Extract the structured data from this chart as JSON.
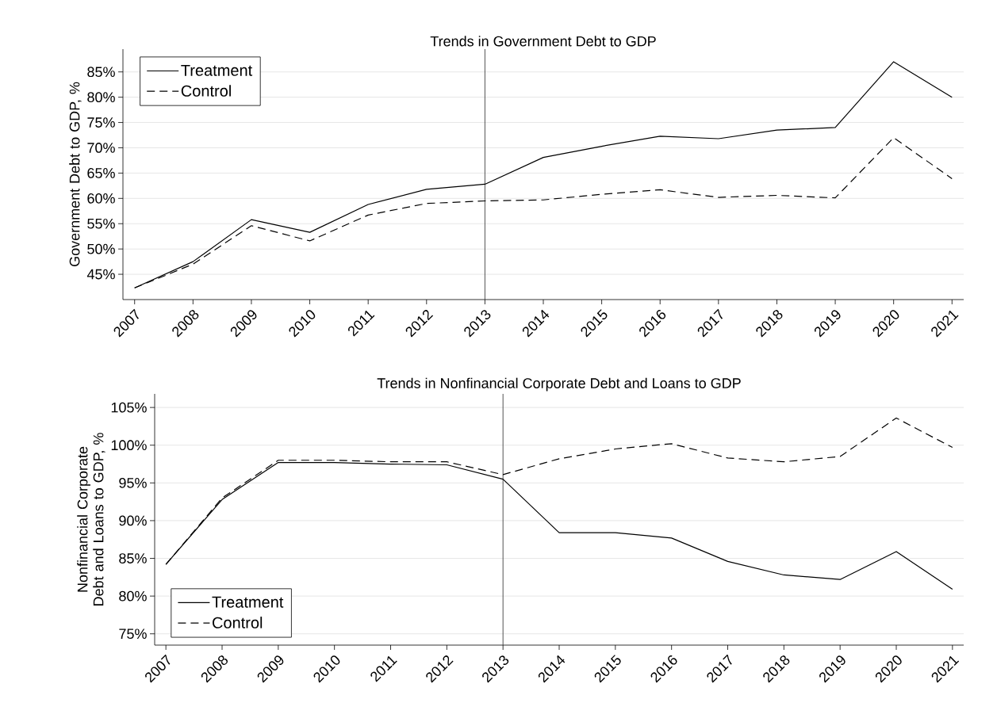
{
  "chart_data": [
    {
      "type": "line",
      "title": "Trends in Government Debt to GDP",
      "ylabel": "Government Debt to GDP, %",
      "x": [
        2007,
        2008,
        2009,
        2010,
        2011,
        2012,
        2013,
        2014,
        2015,
        2016,
        2017,
        2018,
        2019,
        2020,
        2021
      ],
      "series": [
        {
          "name": "Treatment",
          "color": "#000000",
          "line_style": "solid",
          "values": [
            42.3,
            47.5,
            55.8,
            53.3,
            58.8,
            61.8,
            62.8,
            68.1,
            70.3,
            72.3,
            71.8,
            73.5,
            74.0,
            87.0,
            80.0
          ]
        },
        {
          "name": "Control",
          "color": "#000000",
          "line_style": "dashed",
          "values": [
            42.3,
            47.0,
            54.6,
            51.6,
            56.7,
            59.0,
            59.5,
            59.7,
            60.8,
            61.7,
            60.2,
            60.6,
            60.1,
            72.0,
            63.9
          ]
        }
      ],
      "xlim": [
        2006.8,
        2021.2
      ],
      "ylim": [
        40,
        89.5
      ],
      "xticks": [
        2007,
        2008,
        2009,
        2010,
        2011,
        2012,
        2013,
        2014,
        2015,
        2016,
        2017,
        2018,
        2019,
        2020,
        2021
      ],
      "yticks": [
        {
          "value": 45,
          "label": "45%"
        },
        {
          "value": 50,
          "label": "50%"
        },
        {
          "value": 55,
          "label": "55%"
        },
        {
          "value": 60,
          "label": "60%"
        },
        {
          "value": 65,
          "label": "65%"
        },
        {
          "value": 70,
          "label": "70%"
        },
        {
          "value": 75,
          "label": "75%"
        },
        {
          "value": 80,
          "label": "80%"
        },
        {
          "value": 85,
          "label": "85%"
        }
      ],
      "ref_lines": [
        {
          "axis": "x",
          "value": 2013,
          "color": "#404040"
        }
      ],
      "grid": "y",
      "legend": "top left"
    },
    {
      "type": "line",
      "title": "Trends in Nonfinancial Corporate Debt and Loans to GDP",
      "ylabel": "Nonfinancial Corporate Debt and Loans to GDP, %",
      "x": [
        2007,
        2008,
        2009,
        2010,
        2011,
        2012,
        2013,
        2014,
        2015,
        2016,
        2017,
        2018,
        2019,
        2020,
        2021
      ],
      "series": [
        {
          "name": "Treatment",
          "color": "#000000",
          "line_style": "solid",
          "values": [
            84.2,
            92.8,
            97.7,
            97.7,
            97.5,
            97.4,
            95.5,
            88.4,
            88.4,
            87.7,
            84.6,
            82.8,
            82.2,
            85.9,
            80.9
          ]
        },
        {
          "name": "Control",
          "color": "#000000",
          "line_style": "dashed",
          "values": [
            84.2,
            93.0,
            98.0,
            98.0,
            97.8,
            97.8,
            96.1,
            98.2,
            99.5,
            100.2,
            98.3,
            97.8,
            98.5,
            103.6,
            99.7
          ]
        }
      ],
      "xlim": [
        2006.8,
        2021.2
      ],
      "ylim": [
        73.5,
        106.8
      ],
      "xticks": [
        2007,
        2008,
        2009,
        2010,
        2011,
        2012,
        2013,
        2014,
        2015,
        2016,
        2017,
        2018,
        2019,
        2020,
        2021
      ],
      "yticks": [
        {
          "value": 75,
          "label": "75%"
        },
        {
          "value": 80,
          "label": "80%"
        },
        {
          "value": 85,
          "label": "85%"
        },
        {
          "value": 90,
          "label": "90%"
        },
        {
          "value": 95,
          "label": "95%"
        },
        {
          "value": 100,
          "label": "100%"
        },
        {
          "value": 105,
          "label": "105%"
        }
      ],
      "ref_lines": [
        {
          "axis": "x",
          "value": 2013,
          "color": "#404040"
        }
      ],
      "grid": "y",
      "legend": "bottom left"
    }
  ]
}
